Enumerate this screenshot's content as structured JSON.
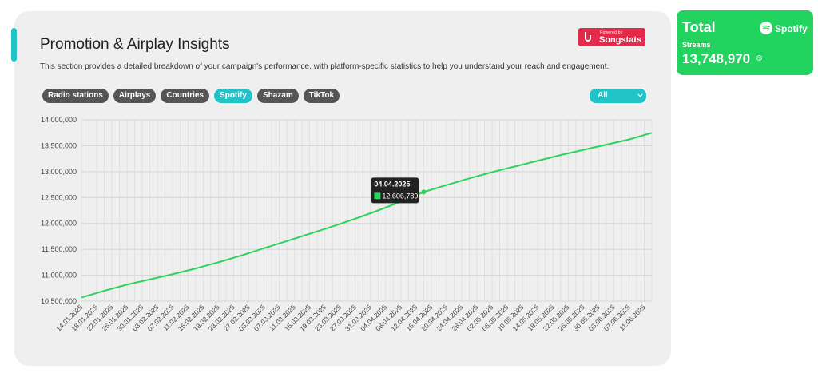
{
  "header": {
    "title": "Promotion & Airplay Insights",
    "description": "This section provides a detailed breakdown of your campaign's performance, with platform-specific statistics to help you understand your reach and engagement."
  },
  "badge": {
    "small": "Powered by",
    "brand": "Songstats"
  },
  "tabs": [
    {
      "label": "Radio stations",
      "active": false
    },
    {
      "label": "Airplays",
      "active": false
    },
    {
      "label": "Countries",
      "active": false
    },
    {
      "label": "Spotify",
      "active": true
    },
    {
      "label": "Shazam",
      "active": false
    },
    {
      "label": "TikTok",
      "active": false
    }
  ],
  "filter": {
    "selected": "All"
  },
  "card": {
    "title": "Total",
    "platform": "Spotify",
    "metric": "Streams",
    "value": "13,748,970"
  },
  "colors": {
    "accent": "#1fc3c8",
    "spotify": "#22d35f",
    "line": "#2ed25c",
    "badge": "#e42a4b"
  },
  "chart_data": {
    "type": "line",
    "y_ticks": [
      "14,000,000",
      "13,500,000",
      "13,000,000",
      "12,500,000",
      "12,000,000",
      "11,500,000",
      "11,000,000",
      "10,500,000"
    ],
    "ylim": [
      10500000,
      14000000
    ],
    "x_ticks": [
      "14.01.2025",
      "18.01.2025",
      "22.01.2025",
      "26.01.2025",
      "30.01.2025",
      "03.02.2025",
      "07.02.2025",
      "11.02.2025",
      "15.02.2025",
      "19.02.2025",
      "23.02.2025",
      "27.02.2025",
      "03.03.2025",
      "07.03.2025",
      "11.03.2025",
      "15.03.2025",
      "19.03.2025",
      "23.03.2025",
      "27.03.2025",
      "31.03.2025",
      "04.04.2025",
      "08.04.2025",
      "12.04.2025",
      "16.04.2025",
      "20.04.2025",
      "24.04.2025",
      "28.04.2025",
      "02.05.2025",
      "06.05.2025",
      "10.05.2025",
      "14.05.2025",
      "18.05.2025",
      "22.05.2025",
      "26.05.2025",
      "30.05.2025",
      "03.06.2025",
      "07.06.2025",
      "11.06.2025"
    ],
    "series": [
      {
        "values": [
          10570000,
          10700000,
          10820000,
          10920000,
          11020000,
          11130000,
          11250000,
          11380000,
          11520000,
          11660000,
          11800000,
          11940000,
          12090000,
          12250000,
          12420000,
          12606789,
          12740000,
          12870000,
          12990000,
          13100000,
          13210000,
          13320000,
          13420000,
          13520000,
          13620000,
          13748970
        ]
      }
    ],
    "tooltip": {
      "date": "04.04.2025",
      "value": "12,606,789"
    },
    "grid": true
  }
}
